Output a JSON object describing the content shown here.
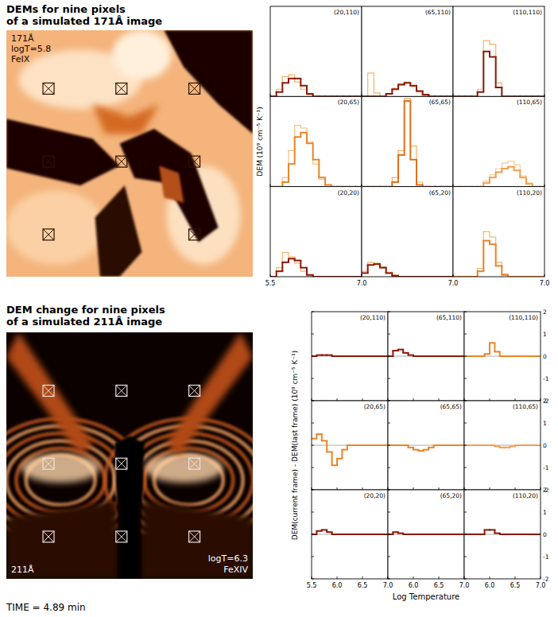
{
  "images": [
    {
      "title": [
        "DEMs for nine pixels",
        "of a simulated 171Å image"
      ],
      "labels": [
        "171Å",
        "logT=5.8",
        "FeIX"
      ],
      "extent": [
        -6,
        146
      ]
    },
    {
      "title": [
        "DEM change for nine pixels",
        "of a simulated 211Å image"
      ],
      "labels": [
        "211Å",
        "logT=6.3",
        "FeXIV"
      ],
      "extent": [
        -6,
        146
      ]
    }
  ],
  "chart_data": [
    {
      "type": "step",
      "ylabel": "DEM (10⁹ cm⁻⁵ K⁻¹)",
      "bins": [
        5.5,
        5.6,
        5.7,
        5.8,
        5.9,
        6.0,
        6.1,
        6.2,
        6.3,
        6.4,
        6.5,
        6.6,
        6.7,
        6.8,
        6.9,
        7.0
      ],
      "xlim": [
        5.5,
        7.0
      ],
      "xticks": [
        5.5,
        {
          "value": 7.0,
          "label": "7.0"
        }
      ],
      "ylim": [
        0,
        10
      ],
      "tick_labels": "x",
      "panels": [
        {
          "label": "(20,110)",
          "pixel": [
            20,
            110
          ],
          "series": [
            {
              "color": "#8b1a0a",
              "values": [
                0,
                0.5,
                1.5,
                2.0,
                2.0,
                1.2,
                0.3,
                0,
                0,
                0,
                0,
                0,
                0,
                0,
                0
              ]
            },
            {
              "color": "#f5b36a",
              "values": [
                0,
                0.8,
                2.2,
                2.4,
                1.6,
                0.8,
                0.2,
                0,
                0,
                0,
                0,
                0,
                0,
                0,
                0
              ]
            }
          ]
        },
        {
          "label": "(65,110)",
          "pixel": [
            65,
            110
          ],
          "series": [
            {
              "color": "#8b1a0a",
              "values": [
                0,
                0,
                0,
                0,
                0.3,
                0.8,
                1.3,
                1.5,
                1.2,
                0.6,
                0.2,
                0,
                0,
                0,
                0
              ]
            },
            {
              "color": "#f5b36a",
              "values": [
                0,
                2.6,
                0.4,
                0,
                0.3,
                0.9,
                1.4,
                1.6,
                1.1,
                0.5,
                0.1,
                0,
                0,
                0,
                0
              ]
            }
          ]
        },
        {
          "label": "(110,110)",
          "pixel": [
            110,
            110
          ],
          "series": [
            {
              "color": "#8b1a0a",
              "values": [
                0,
                0,
                0,
                0,
                0.5,
                5.0,
                4.4,
                1.0,
                0,
                0,
                0,
                0,
                0,
                0,
                0
              ]
            },
            {
              "color": "#f5b36a",
              "values": [
                0,
                0,
                0,
                0,
                0.8,
                6.2,
                5.8,
                1.5,
                0,
                0,
                0,
                0,
                0,
                0,
                0
              ]
            }
          ]
        },
        {
          "label": "(20,65)",
          "pixel": [
            20,
            65
          ],
          "series": [
            {
              "color": "#e8862a",
              "values": [
                0,
                0,
                0.5,
                2.5,
                5.5,
                6.0,
                4.8,
                3.0,
                1.0,
                0.2,
                0,
                0,
                0,
                0,
                0
              ]
            },
            {
              "color": "#f5c080",
              "values": [
                0,
                0,
                1.0,
                4.0,
                6.8,
                6.5,
                5.0,
                2.5,
                0.8,
                0,
                0,
                0,
                0,
                0,
                0
              ]
            }
          ]
        },
        {
          "label": "(65,65)",
          "pixel": [
            65,
            65
          ],
          "series": [
            {
              "color": "#e07020",
              "values": [
                0,
                0,
                0,
                0,
                0,
                0.5,
                3.5,
                9.5,
                3.0,
                0.2,
                0,
                0,
                0,
                0,
                0
              ]
            },
            {
              "color": "#f5b36a",
              "values": [
                0,
                0,
                0,
                0,
                0,
                1.0,
                4.0,
                9.8,
                4.5,
                0.5,
                0,
                0,
                0,
                0,
                0
              ]
            }
          ]
        },
        {
          "label": "(110,65)",
          "pixel": [
            110,
            65
          ],
          "series": [
            {
              "color": "#f0a050",
              "values": [
                0,
                0,
                0,
                0,
                0,
                0.4,
                1.0,
                1.6,
                2.0,
                2.2,
                1.8,
                1.0,
                0.3,
                0,
                0
              ]
            },
            {
              "color": "#f8cc98",
              "values": [
                0,
                0,
                0,
                0,
                0,
                0.6,
                1.3,
                2.0,
                2.6,
                2.8,
                2.4,
                1.2,
                0.4,
                0,
                0
              ]
            }
          ]
        },
        {
          "label": "(20,20)",
          "pixel": [
            20,
            20
          ],
          "series": [
            {
              "color": "#8b1a0a",
              "values": [
                0,
                0.6,
                1.6,
                2.0,
                1.8,
                1.0,
                0.2,
                0,
                0,
                0,
                0,
                0,
                0,
                0,
                0
              ]
            },
            {
              "color": "#f5b36a",
              "values": [
                0,
                1.0,
                2.7,
                2.2,
                1.5,
                0.6,
                0.1,
                0,
                0,
                0,
                0,
                0,
                0,
                0,
                0
              ]
            }
          ]
        },
        {
          "label": "(65,20)",
          "pixel": [
            65,
            20
          ],
          "series": [
            {
              "color": "#8b1a0a",
              "values": [
                0.4,
                1.3,
                1.4,
                1.0,
                0.4,
                0.1,
                0,
                0,
                0,
                0,
                0,
                0,
                0,
                0,
                0
              ]
            },
            {
              "color": "#f5b36a",
              "values": [
                0.6,
                1.6,
                1.5,
                1.1,
                0.5,
                0.2,
                0,
                0,
                0,
                0,
                0,
                0,
                0,
                0,
                0
              ]
            }
          ]
        },
        {
          "label": "(110,20)",
          "pixel": [
            110,
            20
          ],
          "series": [
            {
              "color": "#e8862a",
              "values": [
                0,
                0,
                0,
                0,
                0.6,
                4.0,
                3.6,
                1.2,
                0.2,
                0,
                0,
                0,
                0,
                0,
                0
              ]
            },
            {
              "color": "#f5b36a",
              "values": [
                0,
                0,
                0,
                0,
                0.9,
                5.0,
                4.4,
                1.6,
                0.3,
                0,
                0,
                0,
                0,
                0,
                0
              ]
            }
          ]
        }
      ]
    },
    {
      "type": "step",
      "ylabel": "DEM(current frame) - DEM(last frame) (10⁹ cm⁻⁵ K⁻¹)",
      "xlabel": "Log Temperature",
      "bins": [
        5.5,
        5.6,
        5.7,
        5.8,
        5.9,
        6.0,
        6.1,
        6.2,
        6.3,
        6.4,
        6.5,
        6.6,
        6.7,
        6.8,
        6.9,
        7.0
      ],
      "xlim": [
        5.5,
        7.0
      ],
      "xticks": [
        5.5,
        {
          "value": 6.0,
          "label": "6.0"
        },
        6.5,
        {
          "value": 7.0,
          "label": "7.0"
        }
      ],
      "ylim": [
        -2,
        2
      ],
      "yticks": [
        -2,
        -1,
        0,
        1,
        2
      ],
      "panels": [
        {
          "label": "(20,110)",
          "pixel": [
            20,
            110
          ],
          "series": [
            {
              "color": "#8b1a0a",
              "values": [
                0,
                0.05,
                0.05,
                0.05,
                0,
                0,
                0,
                0,
                0,
                0,
                0,
                0,
                0,
                0,
                0
              ]
            }
          ]
        },
        {
          "label": "(65,110)",
          "pixel": [
            65,
            110
          ],
          "series": [
            {
              "color": "#8b1a0a",
              "values": [
                0,
                0.25,
                0.3,
                0.15,
                0.05,
                0,
                0,
                0,
                0,
                0,
                0,
                0,
                0,
                0,
                0
              ]
            }
          ]
        },
        {
          "label": "(110,110)",
          "pixel": [
            110,
            110
          ],
          "series": [
            {
              "color": "#e8862a",
              "values": [
                0,
                0,
                0,
                0,
                0.1,
                0.6,
                0.2,
                0,
                0,
                0,
                0,
                0,
                0,
                0,
                0
              ]
            }
          ]
        },
        {
          "label": "(20,65)",
          "pixel": [
            20,
            65
          ],
          "series": [
            {
              "color": "#e8862a",
              "values": [
                0.3,
                0.5,
                0.2,
                -0.3,
                -0.9,
                -0.6,
                -0.2,
                0,
                0,
                0,
                0,
                0,
                0,
                0,
                0
              ]
            }
          ]
        },
        {
          "label": "(65,65)",
          "pixel": [
            65,
            65
          ],
          "series": [
            {
              "color": "#e8862a",
              "values": [
                0,
                0,
                0,
                0,
                -0.1,
                -0.2,
                -0.25,
                -0.2,
                -0.1,
                0,
                0,
                0,
                0,
                0,
                0
              ]
            }
          ]
        },
        {
          "label": "(110,65)",
          "pixel": [
            110,
            65
          ],
          "series": [
            {
              "color": "#f0a050",
              "values": [
                0,
                0,
                0,
                0,
                0,
                0,
                -0.05,
                -0.1,
                -0.1,
                -0.05,
                0,
                0,
                0,
                0,
                0
              ]
            }
          ]
        },
        {
          "label": "(20,20)",
          "pixel": [
            20,
            20
          ],
          "series": [
            {
              "color": "#8b1a0a",
              "values": [
                0,
                0.15,
                0.2,
                0.1,
                0,
                0,
                0,
                0,
                0,
                0,
                0,
                0,
                0,
                0,
                0
              ]
            }
          ]
        },
        {
          "label": "(65,20)",
          "pixel": [
            65,
            20
          ],
          "series": [
            {
              "color": "#8b1a0a",
              "values": [
                0,
                0.1,
                0.05,
                0,
                0,
                0,
                0,
                0,
                0,
                0,
                0,
                0,
                0,
                0,
                0
              ]
            }
          ]
        },
        {
          "label": "(110,20)",
          "pixel": [
            110,
            20
          ],
          "series": [
            {
              "color": "#8b1a0a",
              "values": [
                0,
                0,
                0,
                0,
                0.2,
                0.2,
                0.05,
                0,
                0,
                0,
                0,
                0,
                0,
                0,
                0
              ]
            }
          ]
        }
      ]
    }
  ],
  "time": "TIME = 4.89 min"
}
